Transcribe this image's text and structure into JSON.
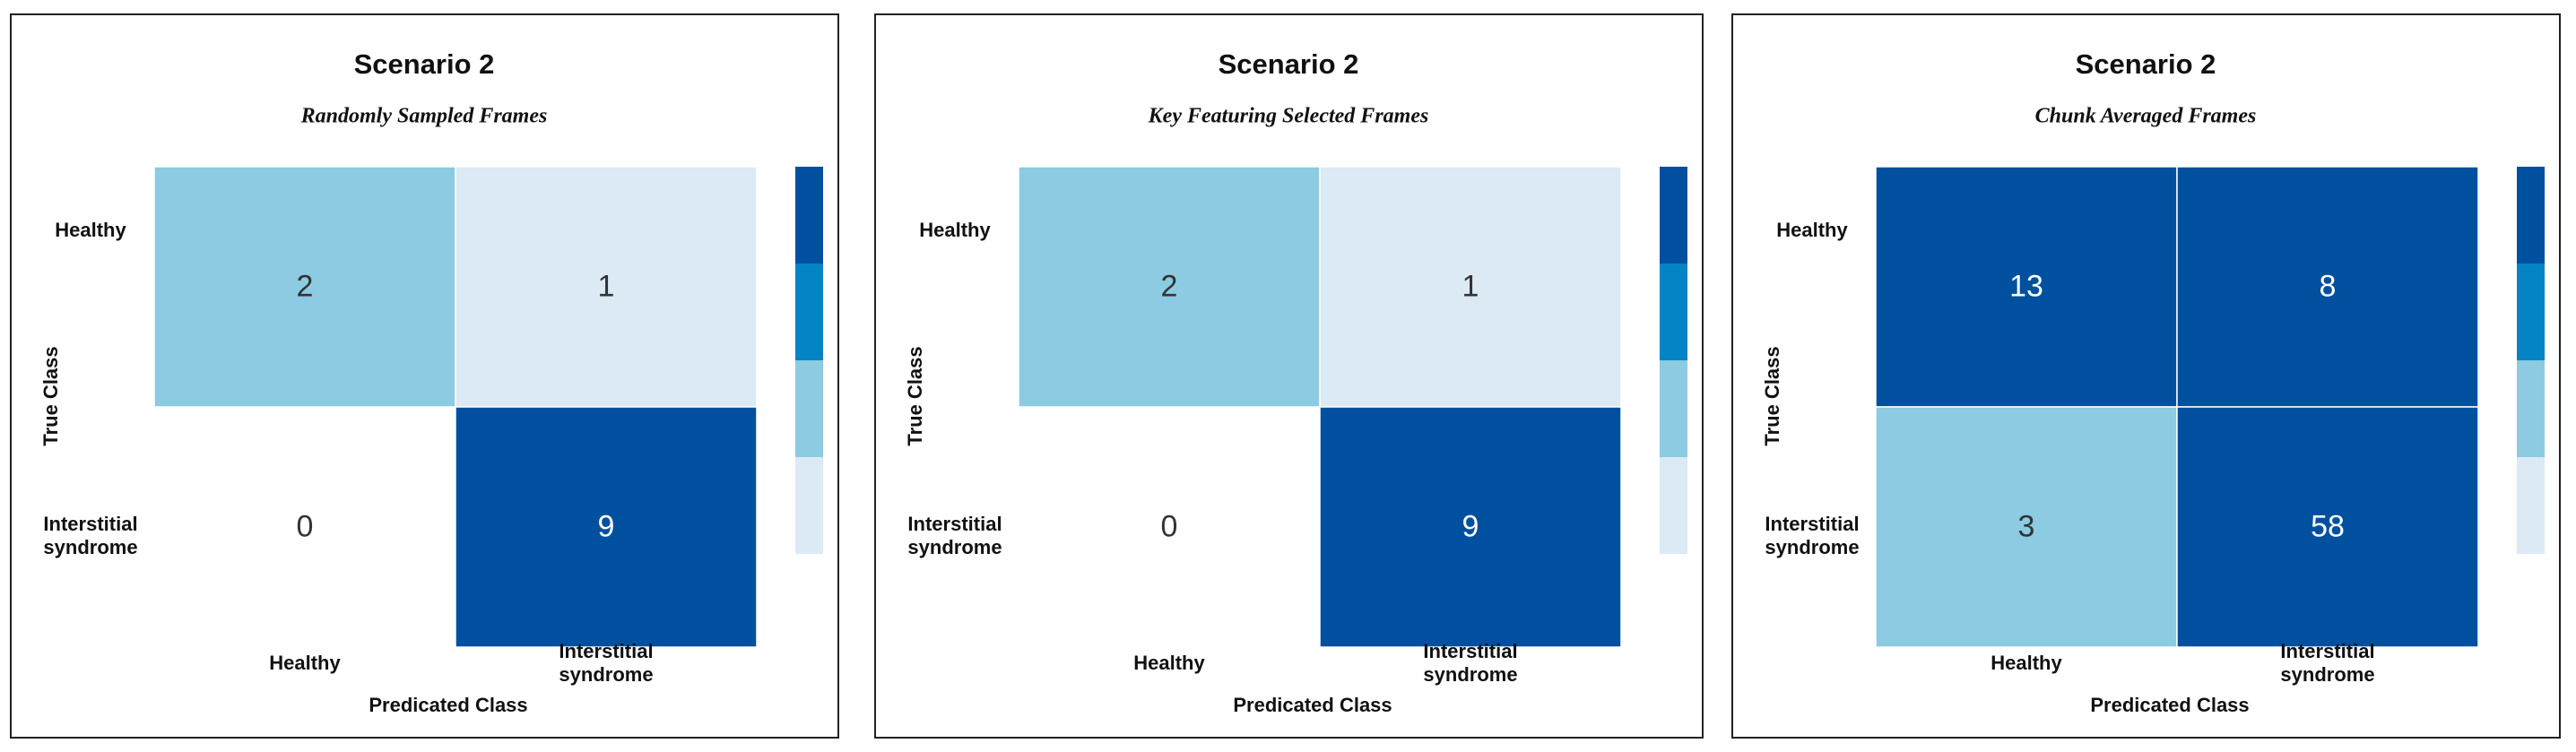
{
  "chart_data": [
    {
      "type": "heatmap",
      "title": "Scenario 2",
      "subtitle": "Randomly Sampled Frames",
      "x_label": "Predicated Class",
      "y_label": "True Class",
      "x_categories": [
        "Healthy",
        "Interstitial syndrome"
      ],
      "y_categories": [
        "Healthy",
        "Interstitial syndrome"
      ],
      "values": [
        [
          2,
          1
        ],
        [
          0,
          9
        ]
      ],
      "colors": [
        [
          "#8ccbe2",
          "#dbeaf5"
        ],
        [
          "#ffffff",
          "#0050a0"
        ]
      ],
      "colorbar_colors": [
        "#0050a0",
        "#0484c4",
        "#8ccbe2",
        "#dbeaf5"
      ]
    },
    {
      "type": "heatmap",
      "title": "Scenario 2",
      "subtitle": "Key Featuring Selected Frames",
      "x_label": "Predicated Class",
      "y_label": "True Class",
      "x_categories": [
        "Healthy",
        "Interstitial syndrome"
      ],
      "y_categories": [
        "Healthy",
        "Interstitial syndrome"
      ],
      "values": [
        [
          2,
          1
        ],
        [
          0,
          9
        ]
      ],
      "colors": [
        [
          "#8ccbe2",
          "#dbeaf5"
        ],
        [
          "#ffffff",
          "#0050a0"
        ]
      ],
      "colorbar_colors": [
        "#0050a0",
        "#0484c4",
        "#8ccbe2",
        "#dbeaf5"
      ]
    },
    {
      "type": "heatmap",
      "title": "Scenario 2",
      "subtitle": "Chunk Averaged Frames",
      "x_label": "Predicated Class",
      "y_label": "True Class",
      "x_categories": [
        "Healthy",
        "Interstitial syndrome"
      ],
      "y_categories": [
        "Healthy",
        "Interstitial syndrome"
      ],
      "values": [
        [
          13,
          8
        ],
        [
          3,
          58
        ]
      ],
      "colors": [
        [
          "#0050a0",
          "#0050a0"
        ],
        [
          "#8ccbe2",
          "#0050a0"
        ]
      ],
      "colorbar_colors": [
        "#0050a0",
        "#0484c4",
        "#8ccbe2",
        "#dbeaf5"
      ]
    }
  ]
}
